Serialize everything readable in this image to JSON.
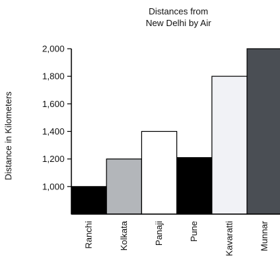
{
  "chart_data": {
    "type": "bar",
    "title": "Distances from New Delhi by Air",
    "title_lines": [
      "Distances from",
      "New Delhi by Air"
    ],
    "xlabel": "",
    "ylabel": "Distance in Kilometers",
    "categories": [
      "Ranchi",
      "Kolkata",
      "Panaji",
      "Pune",
      "Kavaratti",
      "Munnar"
    ],
    "values": [
      1000,
      1200,
      1400,
      1210,
      1800,
      2000
    ],
    "ylim": [
      800,
      2000
    ],
    "yticks": [
      1000,
      1200,
      1400,
      1600,
      1800,
      2000
    ],
    "ytick_labels": [
      "1,000",
      "1,200",
      "1,400",
      "1,600",
      "1,800",
      "2,000"
    ],
    "bar_colors": [
      "#000000",
      "#b3b6ba",
      "#ffffff",
      "#000000",
      "#f1f2f6",
      "#4a4e54"
    ],
    "grid": false,
    "legend": "none"
  }
}
